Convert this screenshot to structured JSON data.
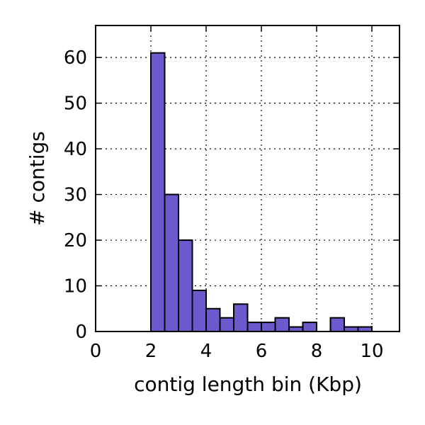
{
  "chart_data": {
    "type": "bar",
    "title": "",
    "xlabel": "contig length bin (Kbp)",
    "ylabel": "# contigs",
    "xlim": [
      0,
      11
    ],
    "ylim": [
      0,
      67
    ],
    "xticks": [
      0,
      2,
      4,
      6,
      8,
      10
    ],
    "yticks": [
      0,
      10,
      20,
      30,
      40,
      50,
      60
    ],
    "grid": true,
    "bin_width": 0.5,
    "bins": [
      {
        "start": 0.0,
        "count": 0
      },
      {
        "start": 0.5,
        "count": 0
      },
      {
        "start": 1.0,
        "count": 0
      },
      {
        "start": 1.5,
        "count": 0
      },
      {
        "start": 2.0,
        "count": 61
      },
      {
        "start": 2.5,
        "count": 30
      },
      {
        "start": 3.0,
        "count": 20
      },
      {
        "start": 3.5,
        "count": 9
      },
      {
        "start": 4.0,
        "count": 5
      },
      {
        "start": 4.5,
        "count": 3
      },
      {
        "start": 5.0,
        "count": 6
      },
      {
        "start": 5.5,
        "count": 2
      },
      {
        "start": 6.0,
        "count": 2
      },
      {
        "start": 6.5,
        "count": 3
      },
      {
        "start": 7.0,
        "count": 1
      },
      {
        "start": 7.5,
        "count": 2
      },
      {
        "start": 8.0,
        "count": 0
      },
      {
        "start": 8.5,
        "count": 3
      },
      {
        "start": 9.0,
        "count": 1
      },
      {
        "start": 9.5,
        "count": 1
      },
      {
        "start": 10.0,
        "count": 0
      },
      {
        "start": 10.5,
        "count": 0
      }
    ],
    "bar_color": "#6a5acd"
  }
}
